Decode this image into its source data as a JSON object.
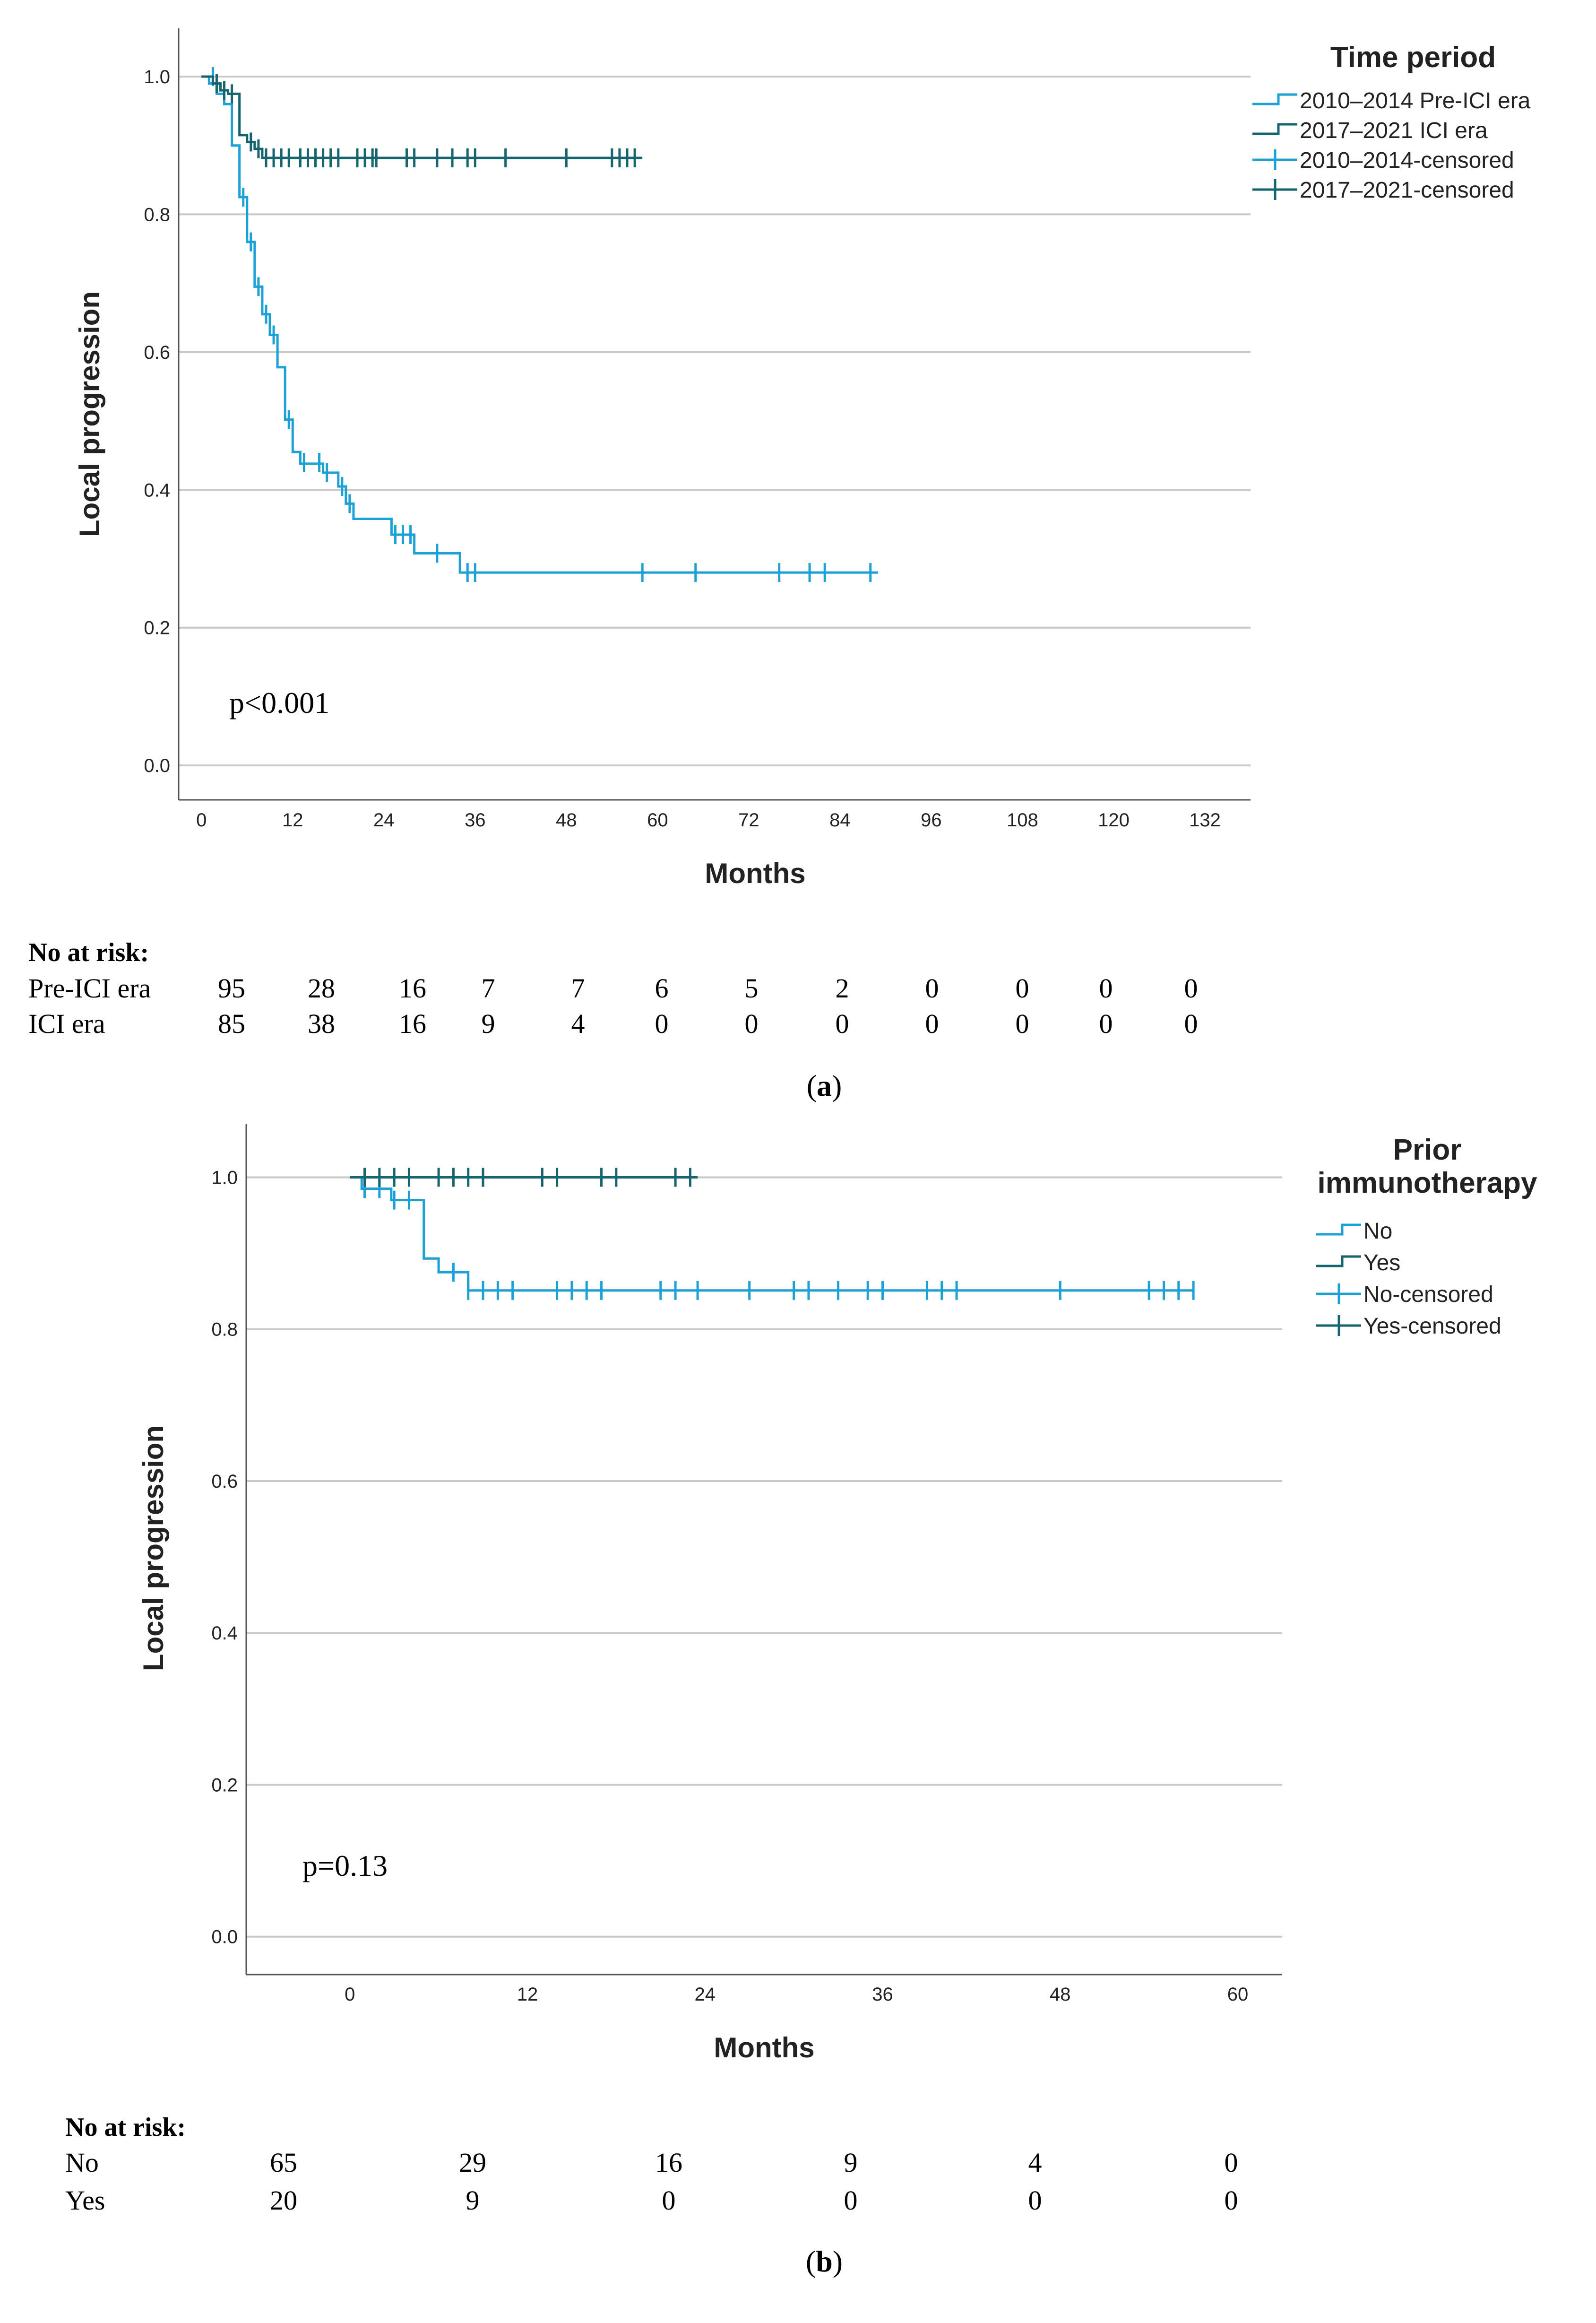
{
  "chart_data": [
    {
      "type": "line",
      "subtype": "kaplan-meier",
      "panel_label": "a",
      "xlabel": "Months",
      "ylabel": "Local progression",
      "xlim": [
        -3,
        138
      ],
      "ylim": [
        -0.05,
        1.07
      ],
      "xticks": [
        0,
        12,
        24,
        36,
        48,
        60,
        72,
        84,
        96,
        108,
        120,
        132
      ],
      "yticks": [
        0.0,
        0.2,
        0.4,
        0.6,
        0.8,
        1.0
      ],
      "ytick_labels": [
        "0.0",
        "0.2",
        "0.4",
        "0.6",
        "0.8",
        "1.0"
      ],
      "grid": true,
      "p_value_text": "p<0.001",
      "legend": {
        "title": "Time period",
        "position": "top-right",
        "entries": [
          "2010–2014 Pre-ICI era",
          "2017–2021 ICI era",
          "2010–2014-censored",
          "2017–2021-censored"
        ]
      },
      "series": [
        {
          "name": "2010–2014 Pre-ICI era",
          "color": "#1ba1d6",
          "steps": [
            [
              0,
              1.0
            ],
            [
              1,
              0.99
            ],
            [
              2,
              0.975
            ],
            [
              3,
              0.96
            ],
            [
              4,
              0.9
            ],
            [
              5,
              0.825
            ],
            [
              6,
              0.76
            ],
            [
              7,
              0.695
            ],
            [
              8,
              0.655
            ],
            [
              9,
              0.625
            ],
            [
              10,
              0.578
            ],
            [
              11,
              0.502
            ],
            [
              12,
              0.455
            ],
            [
              13,
              0.438
            ],
            [
              16,
              0.425
            ],
            [
              18,
              0.405
            ],
            [
              19,
              0.38
            ],
            [
              20,
              0.358
            ],
            [
              25,
              0.335
            ],
            [
              28,
              0.308
            ],
            [
              34,
              0.28
            ],
            [
              89,
              0.28
            ]
          ],
          "censored": [
            [
              1.5,
              1.0
            ],
            [
              5.5,
              0.825
            ],
            [
              6.5,
              0.76
            ],
            [
              7.5,
              0.695
            ],
            [
              8.5,
              0.655
            ],
            [
              9.5,
              0.625
            ],
            [
              11.5,
              0.502
            ],
            [
              13.5,
              0.44
            ],
            [
              15.5,
              0.44
            ],
            [
              16.5,
              0.425
            ],
            [
              18.5,
              0.405
            ],
            [
              19.5,
              0.38
            ],
            [
              25.5,
              0.335
            ],
            [
              26.5,
              0.335
            ],
            [
              27.5,
              0.335
            ],
            [
              31,
              0.308
            ],
            [
              35,
              0.28
            ],
            [
              36,
              0.28
            ],
            [
              58,
              0.28
            ],
            [
              65,
              0.28
            ],
            [
              76,
              0.28
            ],
            [
              80,
              0.28
            ],
            [
              82,
              0.28
            ],
            [
              88,
              0.28
            ]
          ]
        },
        {
          "name": "2017–2021 ICI era",
          "color": "#16646f",
          "steps": [
            [
              0,
              1.0
            ],
            [
              1.5,
              0.99
            ],
            [
              2.5,
              0.98
            ],
            [
              3.5,
              0.975
            ],
            [
              5,
              0.915
            ],
            [
              6,
              0.905
            ],
            [
              7,
              0.895
            ],
            [
              8,
              0.882
            ],
            [
              58,
              0.882
            ]
          ],
          "censored": [
            [
              2,
              0.99
            ],
            [
              3,
              0.98
            ],
            [
              4,
              0.975
            ],
            [
              6.5,
              0.905
            ],
            [
              7.5,
              0.895
            ],
            [
              8.5,
              0.882
            ],
            [
              9.5,
              0.882
            ],
            [
              10.5,
              0.882
            ],
            [
              11.5,
              0.882
            ],
            [
              13,
              0.882
            ],
            [
              14,
              0.882
            ],
            [
              15,
              0.882
            ],
            [
              16,
              0.882
            ],
            [
              17,
              0.882
            ],
            [
              18,
              0.882
            ],
            [
              20.5,
              0.882
            ],
            [
              21.5,
              0.882
            ],
            [
              22.5,
              0.882
            ],
            [
              23,
              0.882
            ],
            [
              27,
              0.882
            ],
            [
              28,
              0.882
            ],
            [
              31,
              0.882
            ],
            [
              33,
              0.882
            ],
            [
              35,
              0.882
            ],
            [
              36,
              0.882
            ],
            [
              40,
              0.882
            ],
            [
              48,
              0.882
            ],
            [
              54,
              0.882
            ],
            [
              55,
              0.882
            ],
            [
              56,
              0.882
            ],
            [
              57,
              0.882
            ]
          ]
        }
      ],
      "at_risk": {
        "title": "No at risk:",
        "rows": [
          {
            "label": "Pre-ICI era",
            "values": [
              "95",
              "28",
              "16",
              "7",
              "7",
              "6",
              "5",
              "2",
              "0",
              "0",
              "0",
              "0"
            ]
          },
          {
            "label": "ICI era",
            "values": [
              "85",
              "38",
              "16",
              "9",
              "4",
              "0",
              "0",
              "0",
              "0",
              "0",
              "0",
              "0"
            ]
          }
        ]
      }
    },
    {
      "type": "line",
      "subtype": "kaplan-meier",
      "panel_label": "b",
      "xlabel": "Months",
      "ylabel": "Local progression",
      "xlim": [
        -7,
        63
      ],
      "ylim": [
        -0.05,
        1.07
      ],
      "xticks": [
        0,
        12,
        24,
        36,
        48,
        60
      ],
      "yticks": [
        0.0,
        0.2,
        0.4,
        0.6,
        0.8,
        1.0
      ],
      "ytick_labels": [
        "0.0",
        "0.2",
        "0.4",
        "0.6",
        "0.8",
        "1.0"
      ],
      "grid": true,
      "p_value_text": "p=0.13",
      "legend": {
        "title_lines": [
          "Prior",
          "immunotherapy"
        ],
        "position": "top-right",
        "entries": [
          "No",
          "Yes",
          "No-censored",
          "Yes-censored"
        ]
      },
      "series": [
        {
          "name": "No",
          "color": "#1ba1d6",
          "steps": [
            [
              0,
              1.0
            ],
            [
              0.8,
              0.985
            ],
            [
              2.8,
              0.97
            ],
            [
              5,
              0.893
            ],
            [
              6,
              0.875
            ],
            [
              8,
              0.851
            ],
            [
              57,
              0.851
            ]
          ],
          "censored": [
            [
              1,
              0.985
            ],
            [
              2,
              0.985
            ],
            [
              3,
              0.97
            ],
            [
              4,
              0.97
            ],
            [
              7,
              0.875
            ],
            [
              8,
              0.851
            ],
            [
              9,
              0.851
            ],
            [
              10,
              0.851
            ],
            [
              11,
              0.851
            ],
            [
              14,
              0.851
            ],
            [
              15,
              0.851
            ],
            [
              16,
              0.851
            ],
            [
              17,
              0.851
            ],
            [
              21,
              0.851
            ],
            [
              22,
              0.851
            ],
            [
              23.5,
              0.851
            ],
            [
              27,
              0.851
            ],
            [
              30,
              0.851
            ],
            [
              31,
              0.851
            ],
            [
              33,
              0.851
            ],
            [
              35,
              0.851
            ],
            [
              36,
              0.851
            ],
            [
              39,
              0.851
            ],
            [
              40,
              0.851
            ],
            [
              41,
              0.851
            ],
            [
              48,
              0.851
            ],
            [
              54,
              0.851
            ],
            [
              55,
              0.851
            ],
            [
              56,
              0.851
            ],
            [
              57,
              0.851
            ]
          ]
        },
        {
          "name": "Yes",
          "color": "#16646f",
          "steps": [
            [
              0,
              1.0
            ],
            [
              23.5,
              1.0
            ]
          ],
          "censored": [
            [
              1,
              1.0
            ],
            [
              2,
              1.0
            ],
            [
              3,
              1.0
            ],
            [
              4,
              1.0
            ],
            [
              6,
              1.0
            ],
            [
              7,
              1.0
            ],
            [
              8,
              1.0
            ],
            [
              9,
              1.0
            ],
            [
              13,
              1.0
            ],
            [
              14,
              1.0
            ],
            [
              17,
              1.0
            ],
            [
              18,
              1.0
            ],
            [
              22,
              1.0
            ],
            [
              23,
              1.0
            ]
          ]
        }
      ],
      "at_risk": {
        "title": "No at risk:",
        "rows": [
          {
            "label": "No",
            "values": [
              "65",
              "29",
              "16",
              "9",
              "4",
              "0"
            ]
          },
          {
            "label": "Yes",
            "values": [
              "20",
              "9",
              "0",
              "0",
              "0",
              "0"
            ]
          }
        ]
      }
    }
  ]
}
